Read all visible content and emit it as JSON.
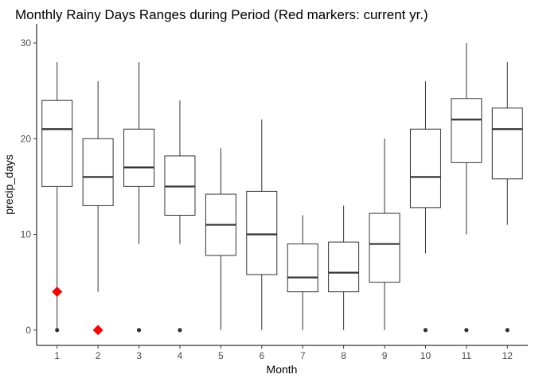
{
  "chart_data": {
    "type": "box",
    "title": "Monthly Rainy Days Ranges during Period (Red markers: current yr.)",
    "xlabel": "Month",
    "ylabel": "precip_days",
    "ylim": [
      -1.6,
      31.5
    ],
    "y_ticks": [
      0,
      10,
      20,
      30
    ],
    "grid": false,
    "categories": [
      "1",
      "2",
      "3",
      "4",
      "5",
      "6",
      "7",
      "8",
      "9",
      "10",
      "11",
      "12"
    ],
    "boxes": [
      {
        "month": "1",
        "min": 0,
        "q1": 15,
        "median": 21,
        "q3": 24,
        "max": 28,
        "outliers": [
          0
        ]
      },
      {
        "month": "2",
        "min": 4,
        "q1": 13,
        "median": 16,
        "q3": 20,
        "max": 26,
        "outliers": [
          0
        ]
      },
      {
        "month": "3",
        "min": 9,
        "q1": 15,
        "median": 17,
        "q3": 21,
        "max": 28,
        "outliers": [
          0
        ]
      },
      {
        "month": "4",
        "min": 9,
        "q1": 12,
        "median": 15,
        "q3": 18.2,
        "max": 24,
        "outliers": [
          0
        ]
      },
      {
        "month": "5",
        "min": 0,
        "q1": 7.8,
        "median": 11,
        "q3": 14.2,
        "max": 19,
        "outliers": []
      },
      {
        "month": "6",
        "min": 0,
        "q1": 5.8,
        "median": 10,
        "q3": 14.5,
        "max": 22,
        "outliers": []
      },
      {
        "month": "7",
        "min": 0,
        "q1": 4,
        "median": 5.5,
        "q3": 9,
        "max": 12,
        "outliers": []
      },
      {
        "month": "8",
        "min": 0,
        "q1": 4,
        "median": 6,
        "q3": 9.2,
        "max": 13,
        "outliers": []
      },
      {
        "month": "9",
        "min": 0,
        "q1": 5,
        "median": 9,
        "q3": 12.2,
        "max": 20,
        "outliers": []
      },
      {
        "month": "10",
        "min": 8,
        "q1": 12.8,
        "median": 16,
        "q3": 21,
        "max": 26,
        "outliers": [
          0
        ]
      },
      {
        "month": "11",
        "min": 10,
        "q1": 17.5,
        "median": 22,
        "q3": 24.2,
        "max": 30,
        "outliers": [
          0
        ]
      },
      {
        "month": "12",
        "min": 11,
        "q1": 15.8,
        "median": 21,
        "q3": 23.2,
        "max": 28,
        "outliers": [
          0
        ]
      }
    ],
    "current_year_markers": [
      {
        "month": "1",
        "value": 4
      },
      {
        "month": "2",
        "value": 0
      }
    ],
    "colors": {
      "box_stroke": "#333333",
      "box_fill": "#ffffff",
      "marker": "#ff0000",
      "tick_label": "#4d4d4d"
    }
  }
}
